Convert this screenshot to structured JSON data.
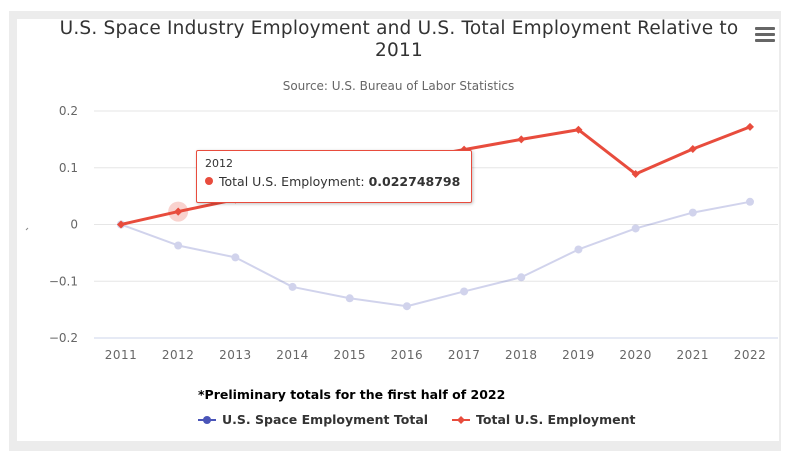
{
  "chart_data": {
    "type": "line",
    "title": "U.S. Space Industry Employment and U.S. Total Employment Relative to 2011",
    "subtitle": "Source: U.S. Bureau of Labor Statistics",
    "xlabel": "",
    "ylabel": "",
    "categories": [
      "2011",
      "2012",
      "2013",
      "2014",
      "2015",
      "2016",
      "2017",
      "2018",
      "2019",
      "2020",
      "2021",
      "2022"
    ],
    "yticks": [
      "0.2",
      "0.1",
      "0",
      "−0.1",
      "−0.2"
    ],
    "ytick_values": [
      0.2,
      0.1,
      0,
      -0.1,
      -0.2
    ],
    "ylim": [
      -0.2,
      0.2
    ],
    "grid": true,
    "legend_position": "bottom",
    "series": [
      {
        "name": "U.S. Space Employment Total",
        "color": "#4a55b8",
        "marker": "circle",
        "faded": true,
        "values": [
          0,
          -0.037,
          -0.058,
          -0.11,
          -0.13,
          -0.144,
          -0.118,
          -0.093,
          -0.044,
          -0.007,
          0.021,
          0.04
        ]
      },
      {
        "name": "Total U.S. Employment",
        "color": "#e84c3d",
        "marker": "diamond",
        "faded": false,
        "values": [
          0,
          0.022748798,
          0.044,
          0.068,
          0.093,
          0.114,
          0.132,
          0.15,
          0.167,
          0.089,
          0.133,
          0.172
        ]
      }
    ],
    "annotation": "*Preliminary totals for the first half of 2022",
    "tooltip": {
      "x": "2012",
      "series": "Total U.S. Employment",
      "label": "Total U.S. Employment: ",
      "value": "0.022748798"
    }
  },
  "menu": {
    "icon": "hamburger-menu-icon"
  },
  "colors": {
    "frame": "#ececec",
    "grid": "#e6e6e6",
    "axis": "#ccd6eb",
    "space": "#4a55b8",
    "total": "#e84c3d"
  }
}
